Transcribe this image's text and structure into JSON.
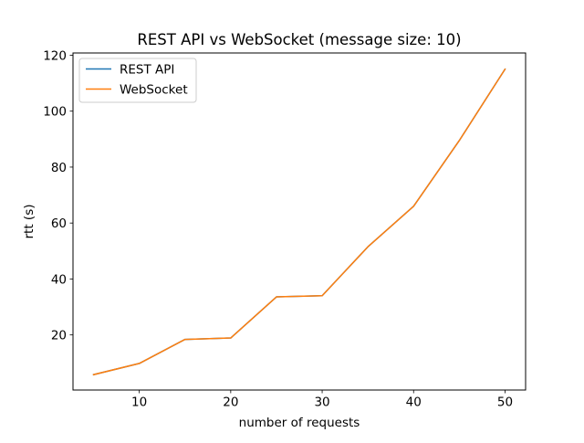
{
  "chart_data": {
    "type": "line",
    "title": "REST API vs WebSocket (message size: 10)",
    "xlabel": "number of requests",
    "ylabel": "rtt (s)",
    "xlim": [
      2.75,
      52.25
    ],
    "ylim": [
      0.3,
      120.8
    ],
    "x_ticks": [
      10,
      20,
      30,
      40,
      50
    ],
    "y_ticks": [
      20,
      40,
      60,
      80,
      100,
      120
    ],
    "grid": false,
    "legend": "top-left",
    "x": [
      5,
      10,
      15,
      20,
      25,
      30,
      35,
      40,
      45,
      50
    ],
    "series": [
      {
        "name": "REST API",
        "color": "#1f77b4",
        "values": [
          5.8,
          9.8,
          18.4,
          18.9,
          33.6,
          34.0,
          51.5,
          66.0,
          89.5,
          115.0
        ]
      },
      {
        "name": "WebSocket",
        "color": "#ff7f0e",
        "values": [
          5.8,
          9.8,
          18.4,
          18.9,
          33.6,
          34.0,
          51.5,
          66.0,
          89.5,
          115.0
        ]
      }
    ]
  }
}
